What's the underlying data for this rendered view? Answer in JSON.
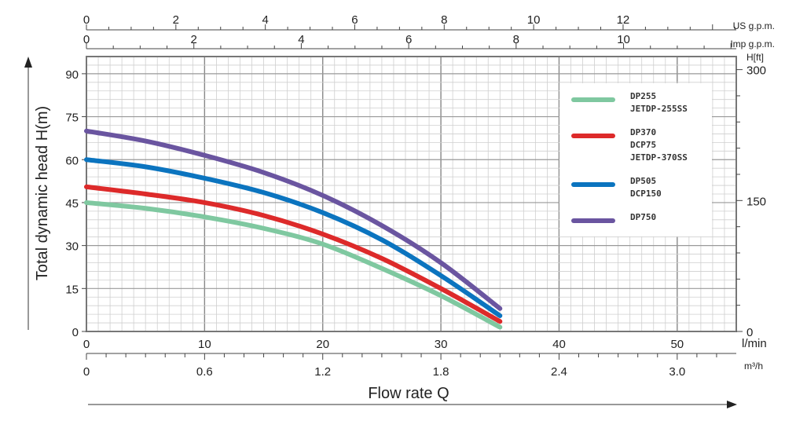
{
  "chart_data": {
    "type": "line",
    "title": "",
    "xlabel": "Flow rate Q",
    "ylabel": "Total dynamic head H(m)",
    "xlim": [
      0,
      55
    ],
    "ylim": [
      0,
      96
    ],
    "grid": true,
    "legend_position": "top-right",
    "x_unit": "l/min",
    "x_ticks": [
      0,
      10,
      20,
      30,
      40,
      50
    ],
    "y_ticks": [
      0,
      15,
      30,
      45,
      60,
      75,
      90
    ],
    "secondary_axes": {
      "m3h": {
        "unit": "m³/h",
        "ticks": [
          "0",
          "0.6",
          "1.2",
          "1.8",
          "2.4",
          "3.0"
        ],
        "values": [
          0,
          0.6,
          1.2,
          1.8,
          2.4,
          3.0
        ]
      },
      "us_gpm": {
        "unit": "US g.p.m.",
        "ticks": [
          "0",
          "2",
          "4",
          "6",
          "8",
          "10",
          "12"
        ],
        "values": [
          0,
          2,
          4,
          6,
          8,
          10,
          12
        ]
      },
      "imp_gpm": {
        "unit": "Imp g.p.m.",
        "ticks": [
          "0",
          "2",
          "4",
          "6",
          "8",
          "10"
        ],
        "values": [
          0,
          2,
          4,
          6,
          8,
          10
        ]
      },
      "h_ft": {
        "unit": "H[ft]",
        "ticks": [
          "0",
          "150",
          "300"
        ],
        "values": [
          0,
          150,
          300
        ]
      }
    },
    "series": [
      {
        "name": "DP255 JETDP-255SS",
        "legend_lines": [
          "DP255",
          "JETDP-255SS"
        ],
        "color": "#7fc8a0",
        "x": [
          0,
          5,
          10,
          15,
          20,
          25,
          30,
          35
        ],
        "y": [
          45,
          43,
          40,
          36,
          30.5,
          22,
          12.5,
          1.5
        ]
      },
      {
        "name": "DP370 DCP75 JETDP-370SS",
        "legend_lines": [
          "DP370",
          "DCP75",
          "JETDP-370SS"
        ],
        "color": "#dd2a2a",
        "x": [
          0,
          5,
          10,
          15,
          20,
          25,
          30,
          35
        ],
        "y": [
          50.5,
          48,
          45,
          40.5,
          34,
          25.5,
          15,
          3.5
        ]
      },
      {
        "name": "DP505 DCP150",
        "legend_lines": [
          "DP505",
          "DCP150"
        ],
        "color": "#0b74bf",
        "x": [
          0,
          5,
          10,
          15,
          20,
          25,
          30,
          35
        ],
        "y": [
          60,
          57.5,
          53.5,
          48.5,
          41.5,
          32,
          19.5,
          5.5
        ]
      },
      {
        "name": "DP750",
        "legend_lines": [
          "DP750"
        ],
        "color": "#6a55a0",
        "x": [
          0,
          5,
          10,
          15,
          20,
          25,
          30,
          35
        ],
        "y": [
          70,
          66.5,
          61.5,
          55.5,
          47.5,
          37,
          24,
          8
        ]
      }
    ]
  }
}
